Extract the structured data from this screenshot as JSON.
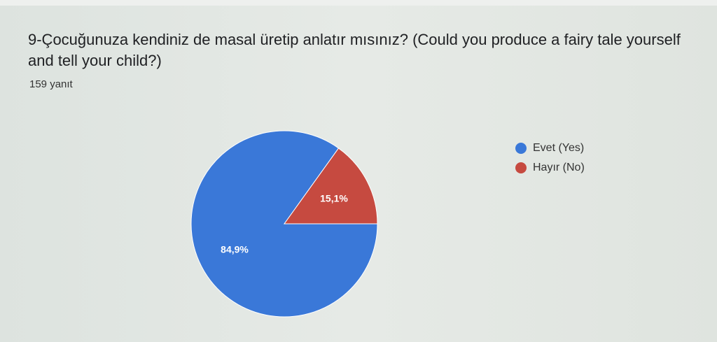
{
  "question": "9-Çocuğunuza kendiniz de masal üretip anlatır mısınız? (Could you produce a fairy tale yourself and tell your child?)",
  "response_count": "159 yanıt",
  "chart_data": {
    "type": "pie",
    "categories": [
      "Evet (Yes)",
      "Hayır (No)"
    ],
    "values": [
      84.9,
      15.1
    ],
    "labels": [
      "84,9%",
      "15,1%"
    ],
    "colors": [
      "#3a78d8",
      "#c64a40"
    ],
    "legend": "right"
  }
}
